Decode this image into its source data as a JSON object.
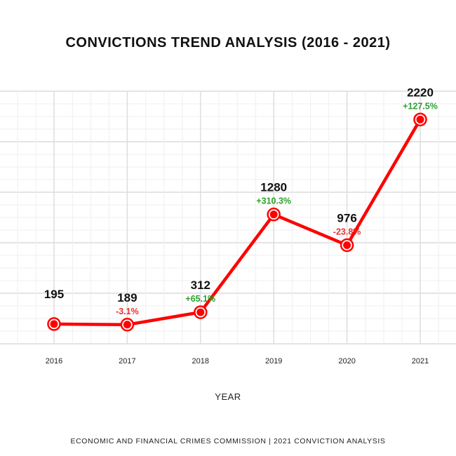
{
  "title": "CONVICTIONS TREND ANALYSIS (2016 - 2021)",
  "footer": "ECONOMIC AND FINANCIAL CRIMES COMMISSION | 2021 CONVICTION ANALYSIS",
  "colors": {
    "line": "#ff0000",
    "positive": "#2ca02c",
    "negative": "#e8322f",
    "grid": "#e6e6e6"
  },
  "chart_data": {
    "type": "line",
    "title": "CONVICTIONS TREND ANALYSIS (2016 - 2021)",
    "xlabel": "YEAR",
    "ylabel": "",
    "categories": [
      "2016",
      "2017",
      "2018",
      "2019",
      "2020",
      "2021"
    ],
    "series": [
      {
        "values": [
          195,
          189,
          312,
          1280,
          976,
          2220
        ]
      }
    ],
    "data_labels": [
      "195",
      "189",
      "312",
      "1280",
      "976",
      "2220"
    ],
    "change_labels": [
      "",
      "-3.1%",
      "+65.1%",
      "+310.3%",
      "-23.8%",
      "+127.5%"
    ],
    "change_sign": [
      "",
      "negative",
      "positive",
      "positive",
      "negative",
      "positive"
    ],
    "ylim": [
      0,
      2500
    ],
    "grid": true,
    "legend": "none"
  }
}
